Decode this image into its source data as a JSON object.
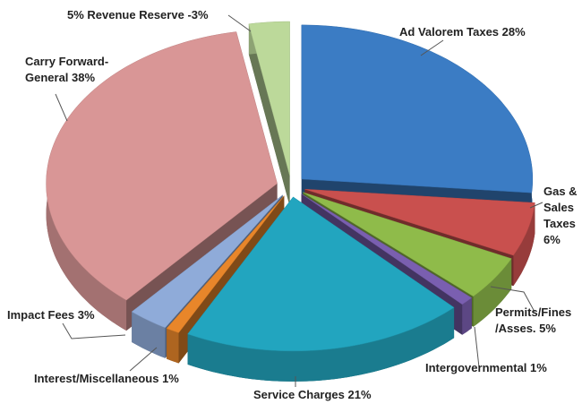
{
  "chart_data": {
    "type": "pie",
    "categories": [
      "Ad Valorem Taxes",
      "Gas & Sales Taxes",
      "Permits/Fines /Asses.",
      "Intergovernmental",
      "Service Charges",
      "Interest/Miscellaneous",
      "Impact Fees",
      "Carry Forward-General",
      "5% Revenue Reserve"
    ],
    "values": [
      28,
      6,
      5,
      1,
      21,
      1,
      3,
      38,
      -3
    ],
    "value_labels": [
      "28%",
      "6%",
      "5%",
      "1%",
      "21%",
      "1%",
      "3%",
      "38%",
      "-3%"
    ],
    "colors": [
      "#3b7cc4",
      "#c9504e",
      "#8fbb4a",
      "#7a5fb0",
      "#22a5bf",
      "#e8862a",
      "#8fabd9",
      "#d99696",
      "#bcd99a"
    ]
  }
}
